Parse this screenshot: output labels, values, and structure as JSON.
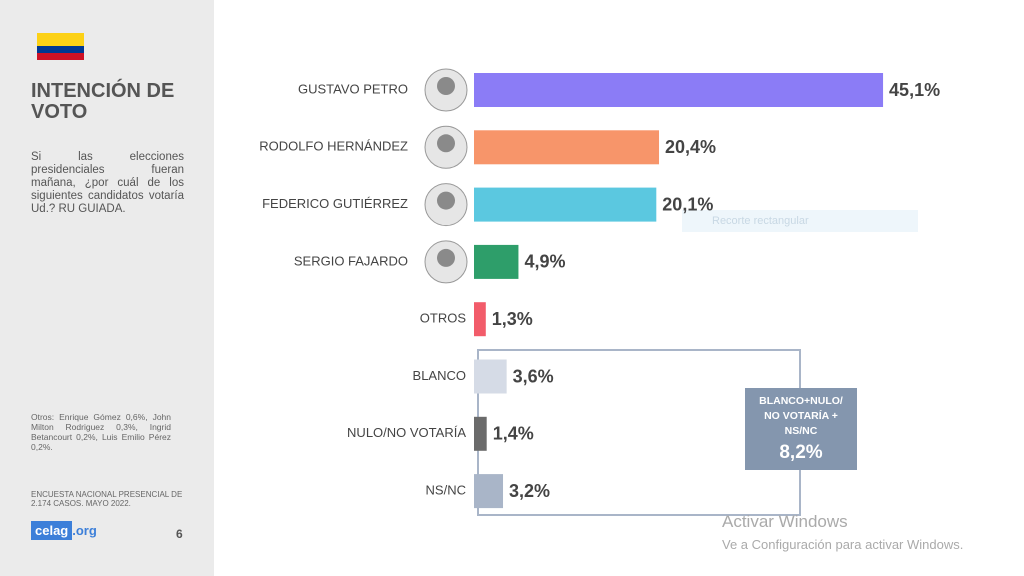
{
  "sidebar": {
    "title": "INTENCIÓN DE VOTO",
    "question": "Si las elecciones presidenciales fueran mañana, ¿por cuál de los siguientes candidatos votaría Ud.? RU GUIADA.",
    "footnote": "Otros: Enrique Gómez 0,6%, John Milton Rodriguez 0,3%, Ingrid Betancourt 0,2%, Luis Emilio Pérez 0,2%.",
    "source": "ENCUESTA NACIONAL PRESENCIAL DE 2.174 CASOS. MAYO 2022.",
    "logo": "celag",
    "logo_suffix": ".org",
    "page": "6"
  },
  "chart_data": {
    "type": "hbar",
    "categories": [
      "GUSTAVO PETRO",
      "RODOLFO HERNÁNDEZ",
      "FEDERICO GUTIÉRREZ",
      "SERGIO FAJARDO",
      "OTROS",
      "BLANCO",
      "NULO/NO VOTARÍA",
      "NS/NC"
    ],
    "values": [
      45.1,
      20.4,
      20.1,
      4.9,
      1.3,
      3.6,
      1.4,
      3.2
    ],
    "value_labels": [
      "45,1%",
      "20,4%",
      "20,1%",
      "4,9%",
      "1,3%",
      "3,6%",
      "1,4%",
      "3,2%"
    ],
    "colors": [
      "#8b7cf6",
      "#f7956a",
      "#5bc8e0",
      "#2e9e6a",
      "#f25c6a",
      "#d5dbe6",
      "#6b6b6b",
      "#a9b5c8"
    ],
    "group_total": {
      "label": "BLANCO+NULO/ NO VOTARÍA + NS/NC",
      "value": 8.2,
      "value_label": "8,2%"
    }
  },
  "overlay": {
    "tooltip": "Recorte rectangular",
    "watermark_title": "Activar Windows",
    "watermark_text": "Ve a Configuración para activar Windows."
  }
}
